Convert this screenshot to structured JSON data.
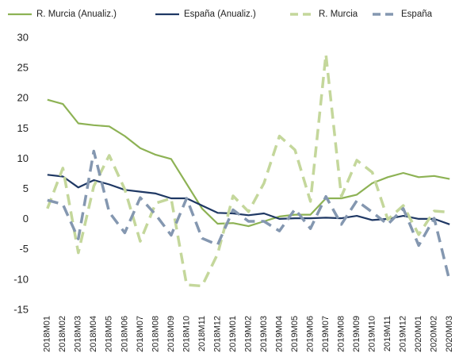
{
  "chart_data": {
    "type": "line",
    "categories": [
      "2018M01",
      "2018M02",
      "2018M03",
      "2018M04",
      "2018M05",
      "2018M06",
      "2018M07",
      "2018M08",
      "2018M09",
      "2018M10",
      "2018M11",
      "2018M12",
      "2019M01",
      "2019M02",
      "2019M03",
      "2019M04",
      "2019M05",
      "2019M06",
      "2019M07",
      "2019M08",
      "2019M09",
      "2019M10",
      "2019M11",
      "2019M12",
      "2020M01",
      "2020M02",
      "2020M03"
    ],
    "series": [
      {
        "name": "R. Murcia  (Anualiz.)",
        "color": "#8db254",
        "dashed": false,
        "values": [
          19.8,
          19.1,
          15.9,
          15.6,
          15.4,
          13.8,
          11.8,
          10.7,
          10.0,
          5.9,
          1.8,
          -0.7,
          -0.6,
          -1.1,
          -0.3,
          0.5,
          0.8,
          0.8,
          3.5,
          3.5,
          4.1,
          6.0,
          7.0,
          7.7,
          7.0,
          7.2,
          6.7
        ]
      },
      {
        "name": "España (Anualiz.)",
        "color": "#1f3864",
        "dashed": false,
        "values": [
          7.4,
          7.1,
          5.3,
          6.5,
          5.8,
          4.9,
          4.6,
          4.3,
          3.5,
          3.5,
          2.3,
          1.1,
          1.0,
          0.7,
          1.0,
          0.1,
          0.2,
          0.2,
          0.3,
          0.2,
          0.6,
          -0.1,
          0.1,
          0.6,
          0.1,
          0.1,
          -0.8
        ]
      },
      {
        "name": "R. Murcia",
        "color": "#c4d79b",
        "dashed": true,
        "values": [
          1.8,
          8.5,
          -5.5,
          5.5,
          10.6,
          5.0,
          -3.6,
          2.7,
          3.5,
          -10.8,
          -11.0,
          -5.7,
          3.9,
          1.3,
          6.0,
          13.8,
          11.5,
          3.0,
          27.3,
          3.8,
          9.8,
          7.8,
          0.0,
          2.3,
          -2.5,
          1.4,
          1.2
        ]
      },
      {
        "name": "España",
        "color": "#8497b0",
        "dashed": true,
        "values": [
          3.2,
          2.5,
          -3.2,
          11.3,
          1.2,
          -2.2,
          3.6,
          0.8,
          -2.6,
          3.5,
          -3.1,
          -4.2,
          1.6,
          -0.3,
          -0.3,
          -1.9,
          1.7,
          -1.5,
          3.8,
          -0.8,
          3.1,
          1.2,
          -0.8,
          1.8,
          -4.3,
          0.2,
          -10.2
        ]
      }
    ],
    "ylim": [
      -15,
      30
    ],
    "yticks": [
      -15,
      -10,
      -5,
      0,
      5,
      10,
      15,
      20,
      25,
      30
    ],
    "grid": false,
    "legend": "top"
  }
}
